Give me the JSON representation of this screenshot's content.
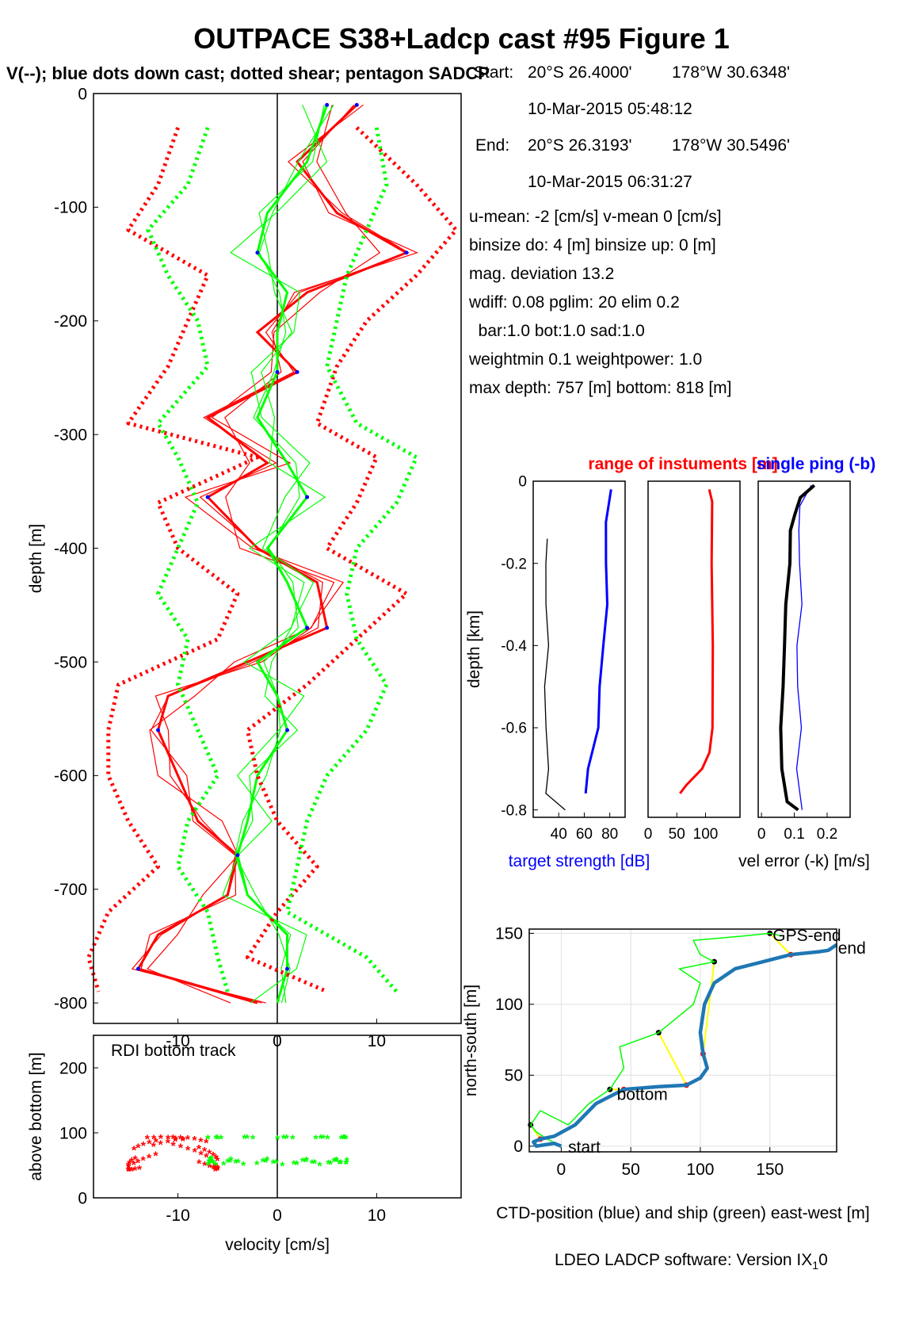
{
  "title": "OUTPACE S38+Ladcp cast #95  Figure 1",
  "subtitle": "V(--); blue dots down cast; dotted shear; pentagon SADCP",
  "info": {
    "start_label": "Start:",
    "start_lat": "20°S 26.4000'",
    "start_lon": "178°W 30.6348'",
    "start_time": "10-Mar-2015 05:48:12",
    "end_label": "End:",
    "end_lat": "20°S 26.3193'",
    "end_lon": "178°W 30.5496'",
    "end_time": "10-Mar-2015 06:31:27",
    "means": "u-mean:  -2 [cm/s]    v-mean   0 [cm/s]",
    "binsize": "binsize do: 4 [m]  binsize up:  0 [m]",
    "magdev": "mag. deviation 13.2",
    "wdiff": "wdiff: 0.08  pglim: 20  elim 0.2",
    "bar": "  bar:1.0 bot:1.0 sad:1.0",
    "weight": "weightmin 0.1  weightpower: 1.0",
    "depth": "max depth: 757 [m]   bottom: 818 [m]"
  },
  "footer": {
    "text": "LDEO LADCP software: Version IX",
    "sub": "1",
    "tail": "0"
  },
  "colors": {
    "red": "#ff0000",
    "green": "#00ff00",
    "blue": "#0000ff",
    "ctd": "#1f77b4",
    "yellow": "#ffff00",
    "black": "#000000"
  },
  "chart_data": [
    {
      "type": "line",
      "id": "velocity-profile",
      "xlabel": "velocity [cm/s]",
      "ylabel": "depth [m]",
      "xlim": [
        -18.5,
        18.5
      ],
      "ylim": [
        -818,
        0
      ],
      "xticks": [
        -10,
        0,
        10
      ],
      "yticks": [
        0,
        -100,
        -200,
        -300,
        -400,
        -500,
        -600,
        -700,
        -800
      ],
      "series": [
        {
          "color": "red",
          "style": "solid",
          "depth": [
            -10,
            -60,
            -105,
            -140,
            -175,
            -210,
            -245,
            -285,
            -325,
            -355,
            -400,
            -430,
            -470,
            -500,
            -530,
            -560,
            -600,
            -640,
            -670,
            -705,
            -740,
            -770,
            -800
          ],
          "values": [
            8,
            2,
            6,
            13,
            3,
            -2,
            2,
            -7,
            -1,
            -7,
            -2,
            4,
            5,
            -3,
            -11,
            -12,
            -10,
            -8,
            -4,
            -5,
            -12,
            -14,
            -2
          ]
        },
        {
          "color": "green",
          "style": "solid",
          "depth": [
            -10,
            -60,
            -105,
            -140,
            -175,
            -210,
            -245,
            -285,
            -325,
            -355,
            -400,
            -430,
            -470,
            -500,
            -530,
            -560,
            -600,
            -640,
            -670,
            -705,
            -740,
            -770,
            -800
          ],
          "values": [
            5,
            3,
            -1,
            -2,
            1,
            0,
            0,
            -2,
            1,
            3,
            -1,
            1,
            3,
            -2,
            0,
            1,
            -2,
            -3,
            -4,
            -3,
            1,
            1,
            0
          ]
        },
        {
          "color": "red",
          "style": "dotted",
          "depth": [
            -30,
            -80,
            -120,
            -160,
            -200,
            -240,
            -290,
            -320,
            -360,
            -400,
            -440,
            -480,
            -520,
            -560,
            -600,
            -640,
            -680,
            -720,
            -760,
            -790
          ],
          "values": [
            -10,
            -12,
            -15,
            -7,
            -9,
            -11,
            -15,
            -2,
            -12,
            -10,
            -4,
            -6,
            -16,
            -17,
            -17,
            -15,
            -12,
            -17,
            -19,
            -18
          ]
        },
        {
          "color": "red",
          "style": "dotted",
          "depth": [
            -30,
            -80,
            -120,
            -160,
            -200,
            -240,
            -290,
            -320,
            -360,
            -400,
            -440,
            -480,
            -520,
            -560,
            -600,
            -640,
            -680,
            -720,
            -760,
            -790
          ],
          "values": [
            8,
            14,
            18,
            14,
            9,
            6,
            4,
            10,
            8,
            5,
            13,
            8,
            3,
            -3,
            -2,
            0,
            4,
            0,
            -3,
            5
          ]
        },
        {
          "color": "green",
          "style": "dotted",
          "depth": [
            -30,
            -80,
            -120,
            -160,
            -200,
            -240,
            -290,
            -320,
            -360,
            -400,
            -440,
            -480,
            -520,
            -560,
            -600,
            -640,
            -680,
            -720,
            -760,
            -790
          ],
          "values": [
            -7,
            -9,
            -13,
            -11,
            -8,
            -7,
            -12,
            -10,
            -8,
            -10,
            -12,
            -9,
            -10,
            -8,
            -6,
            -9,
            -10,
            -7,
            -6,
            -5
          ]
        },
        {
          "color": "green",
          "style": "dotted",
          "depth": [
            -30,
            -80,
            -120,
            -160,
            -200,
            -240,
            -290,
            -320,
            -360,
            -400,
            -440,
            -480,
            -520,
            -560,
            -600,
            -640,
            -680,
            -720,
            -760,
            -790
          ],
          "values": [
            10,
            11,
            9,
            7,
            6,
            5,
            8,
            14,
            12,
            8,
            7,
            8,
            11,
            9,
            5,
            3,
            2,
            1,
            9,
            12
          ]
        }
      ]
    },
    {
      "type": "scatter",
      "id": "bottom-track",
      "title": "RDI bottom track",
      "xlabel": "velocity [cm/s]",
      "ylabel": "above bottom [m]",
      "xlim": [
        -18.5,
        18.5
      ],
      "ylim": [
        0,
        250
      ],
      "yticks": [
        0,
        100,
        200
      ],
      "xticks": [
        -10,
        0,
        10
      ],
      "red_x_range": [
        -15,
        -6
      ],
      "green_x_range": [
        -7,
        7
      ],
      "y_range": [
        40,
        90
      ]
    },
    {
      "type": "line",
      "id": "target-strength",
      "xlabel": "target strength [dB]",
      "ylabel": "depth [km]",
      "xlim": [
        20,
        92
      ],
      "ylim": [
        -0.818,
        0
      ],
      "xticks": [
        40,
        60,
        80
      ],
      "yticks": [
        0,
        -0.2,
        -0.4,
        -0.6,
        -0.8
      ],
      "series": [
        {
          "color": "blue",
          "depth": [
            -0.02,
            -0.1,
            -0.2,
            -0.3,
            -0.4,
            -0.5,
            -0.6,
            -0.7,
            -0.76
          ],
          "values": [
            80,
            78,
            77,
            77,
            76,
            72,
            70,
            64,
            61
          ]
        },
        {
          "color": "black",
          "depth": [
            -0.14,
            -0.2,
            -0.3,
            -0.4,
            -0.5,
            -0.6,
            -0.7,
            -0.76,
            -0.8
          ],
          "values": [
            30,
            31,
            30,
            31,
            30,
            30,
            31,
            31,
            45
          ]
        }
      ]
    },
    {
      "type": "line",
      "id": "instrument-range",
      "title": "range of instuments [m]",
      "xlim": [
        0,
        160
      ],
      "ylim": [
        -0.818,
        0
      ],
      "xticks": [
        0,
        50,
        100
      ],
      "series": [
        {
          "color": "red",
          "depth": [
            -0.02,
            -0.05,
            -0.2,
            -0.4,
            -0.6,
            -0.66,
            -0.7,
            -0.74,
            -0.76
          ],
          "values": [
            105,
            112,
            112,
            112,
            111,
            108,
            95,
            65,
            55
          ]
        }
      ]
    },
    {
      "type": "line",
      "id": "velocity-error",
      "title": "single ping (-b)",
      "xlabel": "vel error (-k) [m/s]",
      "xlim": [
        -0.01,
        0.27
      ],
      "ylim": [
        -0.818,
        0
      ],
      "xticks": [
        0,
        0.1,
        0.2
      ],
      "series": [
        {
          "color": "blue",
          "depth": [
            -0.01,
            -0.06,
            -0.12,
            -0.2,
            -0.3,
            -0.4,
            -0.5,
            -0.6,
            -0.7,
            -0.8
          ],
          "values": [
            0.15,
            0.12,
            0.11,
            0.12,
            0.12,
            0.11,
            0.11,
            0.12,
            0.11,
            0.12
          ]
        },
        {
          "color": "black",
          "depth": [
            -0.01,
            -0.04,
            -0.08,
            -0.12,
            -0.2,
            -0.3,
            -0.4,
            -0.5,
            -0.6,
            -0.7,
            -0.78,
            -0.8
          ],
          "values": [
            0.16,
            0.12,
            0.1,
            0.09,
            0.085,
            0.075,
            0.07,
            0.065,
            0.06,
            0.06,
            0.08,
            0.11
          ]
        }
      ]
    },
    {
      "type": "line",
      "id": "position-track",
      "xlabel": "CTD-position (blue) and ship (green) east-west [m]",
      "ylabel": "north-south [m]",
      "xlim": [
        -23,
        198
      ],
      "ylim": [
        -4,
        153
      ],
      "xticks": [
        0,
        50,
        100,
        150
      ],
      "yticks": [
        0,
        50,
        100,
        150
      ],
      "labels": {
        "start": "start",
        "bottom": "bottom",
        "gps_end": "GPS-end",
        "end": "end"
      },
      "ctd": {
        "x": [
          0,
          -5,
          -12,
          -18,
          -20,
          -15,
          -5,
          10,
          25,
          45,
          70,
          90,
          100,
          105,
          102,
          100,
          103,
          110,
          125,
          145,
          165,
          185,
          192,
          198
        ],
        "y": [
          0,
          2,
          1,
          0,
          3,
          5,
          7,
          15,
          30,
          40,
          42,
          43,
          48,
          55,
          65,
          80,
          100,
          115,
          125,
          130,
          135,
          137,
          138,
          142
        ]
      },
      "ship": {
        "x": [
          0,
          -10,
          -18,
          -22,
          -15,
          -5,
          5,
          20,
          35,
          45,
          42,
          70,
          95,
          100,
          85,
          110,
          100,
          95,
          130,
          150,
          155,
          158
        ],
        "y": [
          0,
          5,
          10,
          15,
          25,
          20,
          15,
          30,
          40,
          55,
          70,
          80,
          100,
          115,
          125,
          130,
          135,
          145,
          148,
          150,
          149,
          148
        ]
      }
    }
  ]
}
